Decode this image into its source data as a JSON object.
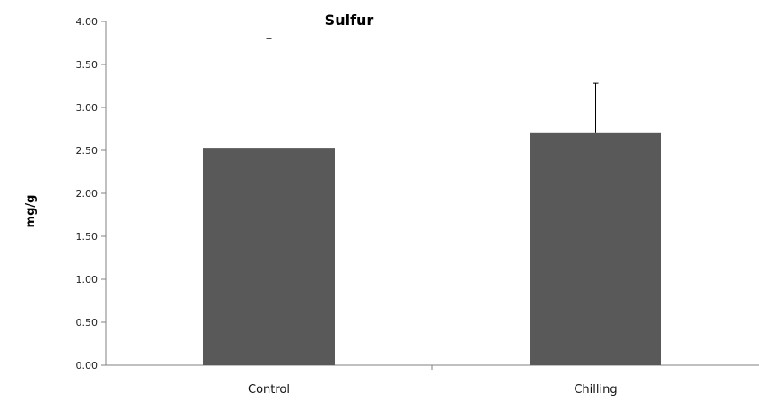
{
  "chart_data": {
    "type": "bar",
    "title": "Sulfur",
    "xlabel": "",
    "ylabel": "mg/g",
    "categories": [
      "Control",
      "Chilling"
    ],
    "values": [
      2.53,
      2.7
    ],
    "error_upper": [
      3.8,
      3.28
    ],
    "ylim": [
      0,
      4
    ],
    "yticks": [
      "0.00",
      "0.50",
      "1.00",
      "1.50",
      "2.00",
      "2.50",
      "3.00",
      "3.50",
      "4.00"
    ],
    "ytick_values": [
      0,
      0.5,
      1,
      1.5,
      2,
      2.5,
      3,
      3.5,
      4
    ],
    "bar_color": "#595959",
    "grid": false,
    "legend": "none"
  }
}
